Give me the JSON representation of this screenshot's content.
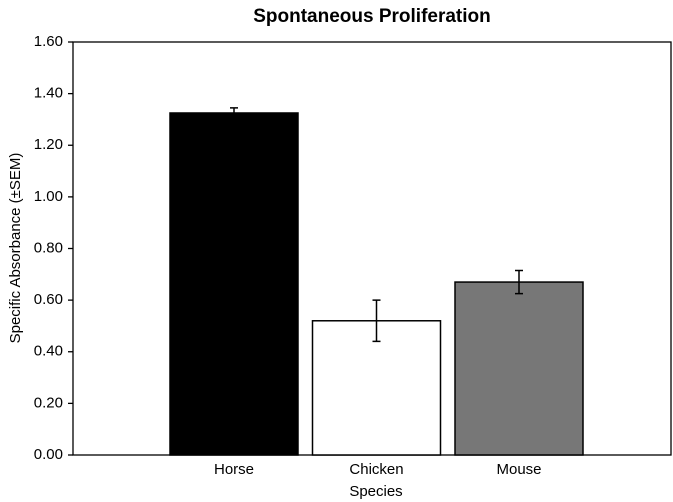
{
  "chart_data": {
    "type": "bar",
    "title": "Spontaneous Proliferation",
    "xlabel": "Species",
    "ylabel": "Specific Absorbance (±SEM)",
    "categories": [
      "Horse",
      "Chicken",
      "Mouse"
    ],
    "values": [
      1.325,
      0.52,
      0.67
    ],
    "errors": [
      0.02,
      0.08,
      0.045
    ],
    "colors": [
      "#000000",
      "#ffffff",
      "#777777"
    ],
    "ylim": [
      0,
      1.6
    ],
    "yticks": [
      {
        "value": 0,
        "label": "0.00"
      },
      {
        "value": 0.2,
        "label": "0.20"
      },
      {
        "value": 0.4,
        "label": "0.40"
      },
      {
        "value": 0.6,
        "label": "0.60"
      },
      {
        "value": 0.8,
        "label": "0.80"
      },
      {
        "value": 1.0,
        "label": "1.00"
      },
      {
        "value": 1.2,
        "label": "1.20"
      },
      {
        "value": 1.4,
        "label": "1.40"
      },
      {
        "value": 1.6,
        "label": "1.60"
      }
    ],
    "grid": false
  }
}
